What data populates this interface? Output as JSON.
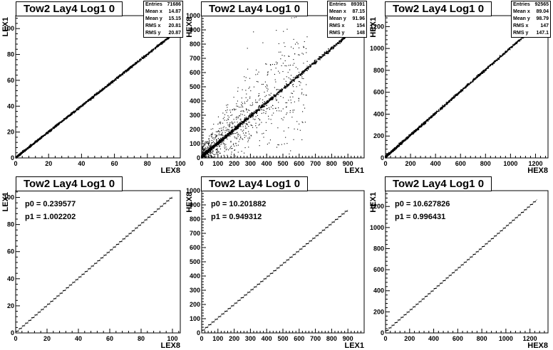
{
  "chart_data": [
    {
      "type": "scatter",
      "title": "Tow2 Lay4 Log1 0",
      "xlabel": "LEX8",
      "ylabel": "LEX1",
      "xlim": [
        0,
        100
      ],
      "ylim": [
        0,
        110
      ],
      "xticks": [
        0,
        20,
        40,
        60,
        80,
        100
      ],
      "yticks": [
        0,
        20,
        40,
        60,
        80,
        100
      ],
      "stats": [
        [
          "Entries",
          "71686"
        ],
        [
          "Mean x",
          "14.87"
        ],
        [
          "Mean y",
          "15.15"
        ],
        [
          "RMS x",
          "20.81"
        ],
        [
          "RMS y",
          "20.87"
        ]
      ],
      "trend": {
        "slope": 1.0,
        "intercept": 0.24,
        "xmin": 0,
        "xmax": 96
      },
      "density": "heavy-lowend"
    },
    {
      "type": "scatter",
      "title": "Tow2 Lay4 Log1 0",
      "xlabel": "LEX1",
      "ylabel": "HEX8",
      "xlim": [
        0,
        1000
      ],
      "ylim": [
        0,
        1000
      ],
      "xticks": [
        0,
        100,
        200,
        300,
        400,
        500,
        600,
        700,
        800,
        900
      ],
      "yticks": [
        0,
        100,
        200,
        300,
        400,
        500,
        600,
        700,
        800,
        900,
        1000
      ],
      "stats": [
        [
          "Entries",
          "89391"
        ],
        [
          "Mean x",
          "87.15"
        ],
        [
          "Mean y",
          "91.96"
        ],
        [
          "RMS x",
          "154"
        ],
        [
          "RMS y",
          "148"
        ]
      ],
      "trend": {
        "slope": 0.95,
        "intercept": 10.2,
        "xmin": 0,
        "xmax": 900
      },
      "density": "scattered"
    },
    {
      "type": "scatter",
      "title": "Tow2 Lay4 Log1 0",
      "xlabel": "HEX8",
      "ylabel": "HEX1",
      "xlim": [
        0,
        1300
      ],
      "ylim": [
        0,
        1300
      ],
      "xticks": [
        0,
        200,
        400,
        600,
        800,
        1000,
        1200
      ],
      "yticks": [
        0,
        200,
        400,
        600,
        800,
        1000,
        1200
      ],
      "stats": [
        [
          "Entries",
          "92565"
        ],
        [
          "Mean x",
          "89.04"
        ],
        [
          "Mean y",
          "98.79"
        ],
        [
          "RMS x",
          "147"
        ],
        [
          "RMS y",
          "147.1"
        ]
      ],
      "trend": {
        "slope": 0.996,
        "intercept": 10.6,
        "xmin": 0,
        "xmax": 1130
      },
      "density": "sparse-upper"
    },
    {
      "type": "line",
      "title": "Tow2 Lay4 Log1 0",
      "xlabel": "LEX8",
      "ylabel": "LEX1",
      "xlim": [
        0,
        105
      ],
      "ylim": [
        0,
        105
      ],
      "xticks": [
        0,
        20,
        40,
        60,
        80,
        100
      ],
      "yticks": [
        0,
        20,
        40,
        60,
        80,
        100
      ],
      "fit": [
        [
          "p0",
          "0.239577"
        ],
        [
          "p1",
          "1.002202"
        ]
      ],
      "trend": {
        "slope": 1.002202,
        "intercept": 0.239577,
        "xmin": 0,
        "xmax": 100
      },
      "profile_step": 2
    },
    {
      "type": "line",
      "title": "Tow2 Lay4 Log1 0",
      "xlabel": "LEX1",
      "ylabel": "HEX8",
      "xlim": [
        0,
        1000
      ],
      "ylim": [
        0,
        1000
      ],
      "xticks": [
        0,
        100,
        200,
        300,
        400,
        500,
        600,
        700,
        800,
        900
      ],
      "yticks": [
        0,
        100,
        200,
        300,
        400,
        500,
        600,
        700,
        800,
        900,
        1000
      ],
      "fit": [
        [
          "p0",
          "10.201882"
        ],
        [
          "p1",
          "0.949312"
        ]
      ],
      "trend": {
        "slope": 0.949312,
        "intercept": 10.201882,
        "xmin": 0,
        "xmax": 900
      },
      "profile_step": 20
    },
    {
      "type": "line",
      "title": "Tow2 Lay4 Log1 0",
      "xlabel": "HEX8",
      "ylabel": "HEX1",
      "xlim": [
        0,
        1350
      ],
      "ylim": [
        0,
        1350
      ],
      "xticks": [
        0,
        200,
        400,
        600,
        800,
        1000,
        1200
      ],
      "yticks": [
        0,
        200,
        400,
        600,
        800,
        1000,
        1200
      ],
      "fit": [
        [
          "p0",
          "10.627826"
        ],
        [
          "p1",
          "0.996431"
        ]
      ],
      "trend": {
        "slope": 0.996431,
        "intercept": 10.627826,
        "xmin": 0,
        "xmax": 1260
      },
      "profile_step": 25
    }
  ]
}
